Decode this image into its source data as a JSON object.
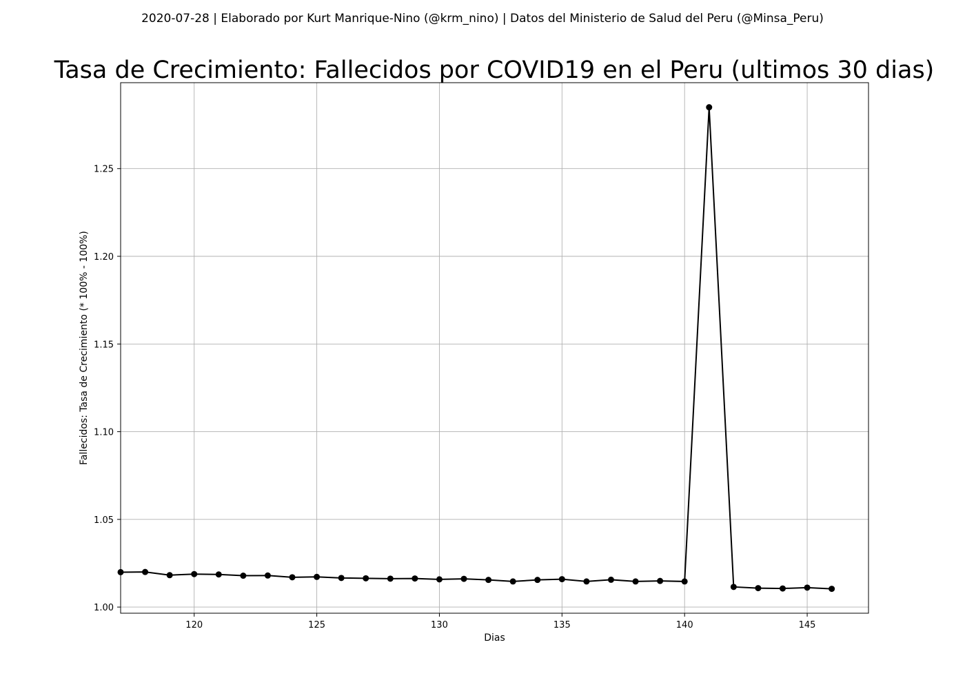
{
  "header": {
    "suptitle": "2020-07-28 | Elaborado por Kurt Manrique-Nino (@krm_nino) | Datos del Ministerio de Salud del Peru (@Minsa_Peru)"
  },
  "chart_data": {
    "type": "line",
    "title": "Tasa de Crecimiento: Fallecidos por COVID19 en el Peru (ultimos 30 dias)",
    "xlabel": "Dias",
    "ylabel": "Fallecidos: Tasa de Crecimiento (* 100% - 100%)",
    "xlim": [
      117,
      147.5
    ],
    "ylim": [
      0.9965,
      1.299
    ],
    "xticks": [
      120,
      125,
      130,
      135,
      140,
      145
    ],
    "yticks": [
      1.0,
      1.05,
      1.1,
      1.15,
      1.2,
      1.25
    ],
    "ytick_labels": [
      "1.00",
      "1.05",
      "1.10",
      "1.15",
      "1.20",
      "1.25"
    ],
    "grid": true,
    "line_color": "#000000",
    "x": [
      117,
      118,
      119,
      120,
      121,
      122,
      123,
      124,
      125,
      126,
      127,
      128,
      129,
      130,
      131,
      132,
      133,
      134,
      135,
      136,
      137,
      138,
      139,
      140,
      141,
      142,
      143,
      144,
      145,
      146
    ],
    "values": [
      1.0199,
      1.02,
      1.0182,
      1.0188,
      1.0186,
      1.0179,
      1.018,
      1.017,
      1.0172,
      1.0166,
      1.0164,
      1.0162,
      1.0163,
      1.0158,
      1.0161,
      1.0155,
      1.0146,
      1.0155,
      1.0159,
      1.0146,
      1.0156,
      1.0146,
      1.0149,
      1.0146,
      1.285,
      1.0115,
      1.0108,
      1.0106,
      1.0111,
      1.0104
    ]
  }
}
